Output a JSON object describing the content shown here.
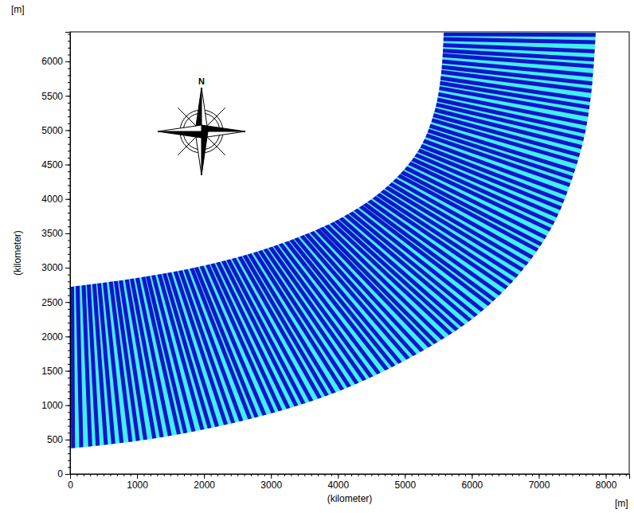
{
  "chart_data": {
    "type": "map",
    "x_label": "(kilometer)",
    "y_label": "(kilometer)",
    "x_unit": "[m]",
    "y_unit": "[m]",
    "compass_label": "N",
    "xlim": [
      0,
      8350
    ],
    "ylim": [
      0,
      6430
    ],
    "xticks": [
      0,
      1000,
      2000,
      3000,
      4000,
      5000,
      6000,
      7000,
      8000
    ],
    "yticks": [
      0,
      500,
      1000,
      1500,
      2000,
      2500,
      3000,
      3500,
      4000,
      4500,
      5000,
      5500,
      6000
    ],
    "xminor": [
      0,
      100,
      200,
      300,
      400,
      500,
      600,
      700,
      800,
      900,
      1000,
      1100,
      1200,
      1300,
      1400,
      1500,
      1600,
      1700,
      1800,
      1900,
      2000,
      2100,
      2200,
      2300,
      2400,
      2500,
      2600,
      2700,
      2800,
      2900,
      3000,
      3100,
      3200,
      3300,
      3400,
      3500,
      3600,
      3700,
      3800,
      3900,
      4000,
      4100,
      4200,
      4300,
      4400,
      4500,
      4600,
      4700,
      4800,
      4900,
      5000,
      5100,
      5200,
      5300,
      5400,
      5500,
      5600,
      5700,
      5800,
      5900,
      6000,
      6100,
      6200,
      6300,
      6400,
      6500,
      6600,
      6700,
      6800,
      6900,
      7000,
      7100,
      7200,
      7300,
      7400,
      7500,
      7600,
      7700,
      7800,
      7900,
      8000,
      8100,
      8200,
      8300
    ],
    "yminor": [
      0,
      100,
      200,
      300,
      400,
      500,
      600,
      700,
      800,
      900,
      1000,
      1100,
      1200,
      1300,
      1400,
      1500,
      1600,
      1700,
      1800,
      1900,
      2000,
      2100,
      2200,
      2300,
      2400,
      2500,
      2600,
      2700,
      2800,
      2900,
      3000,
      3100,
      3200,
      3300,
      3400,
      3500,
      3600,
      3700,
      3800,
      3900,
      4000,
      4100,
      4200,
      4300,
      4400,
      4500,
      4600,
      4700,
      4800,
      4900,
      5000,
      5100,
      5200,
      5300,
      5400,
      5500,
      5600,
      5700,
      5800,
      5900,
      6000,
      6100,
      6200,
      6300,
      6400
    ],
    "colors": [
      "#3ff0f0",
      "#1414c8"
    ],
    "outer_bank": {
      "x": [
        0,
        1000,
        2000,
        3000,
        4000,
        5000,
        6000,
        6700,
        7200,
        7500,
        7700,
        7800,
        7850
      ],
      "y": [
        370,
        480,
        650,
        880,
        1200,
        1650,
        2250,
        2900,
        3600,
        4300,
        5000,
        5700,
        6420
      ]
    },
    "inner_bank": {
      "x": [
        0,
        1000,
        2000,
        3000,
        4000,
        4700,
        5200,
        5450,
        5550,
        5580
      ],
      "y": [
        2720,
        2850,
        3030,
        3300,
        3700,
        4150,
        4700,
        5300,
        5900,
        6420
      ]
    },
    "crests": [
      0.004,
      0.015,
      0.027,
      0.037,
      0.048,
      0.058,
      0.069,
      0.081,
      0.091,
      0.101,
      0.113,
      0.123,
      0.134,
      0.146,
      0.155,
      0.166,
      0.178,
      0.188,
      0.198,
      0.21,
      0.22,
      0.231,
      0.243,
      0.252,
      0.263,
      0.275,
      0.285,
      0.296,
      0.307,
      0.317,
      0.328,
      0.34,
      0.35,
      0.36,
      0.372,
      0.382,
      0.393,
      0.404,
      0.414,
      0.425,
      0.437,
      0.447,
      0.457,
      0.469,
      0.479,
      0.49,
      0.502,
      0.511,
      0.522,
      0.534,
      0.544,
      0.554,
      0.566,
      0.576,
      0.587,
      0.599,
      0.608,
      0.619,
      0.631,
      0.641,
      0.652,
      0.663,
      0.673,
      0.684,
      0.696,
      0.705,
      0.716,
      0.728,
      0.738,
      0.749,
      0.76,
      0.77,
      0.781,
      0.793,
      0.803,
      0.813,
      0.825,
      0.835,
      0.846,
      0.857,
      0.867,
      0.878,
      0.89,
      0.9,
      0.91,
      0.922,
      0.932,
      0.943,
      0.955,
      0.964,
      0.975,
      0.987,
      0.997
    ]
  }
}
